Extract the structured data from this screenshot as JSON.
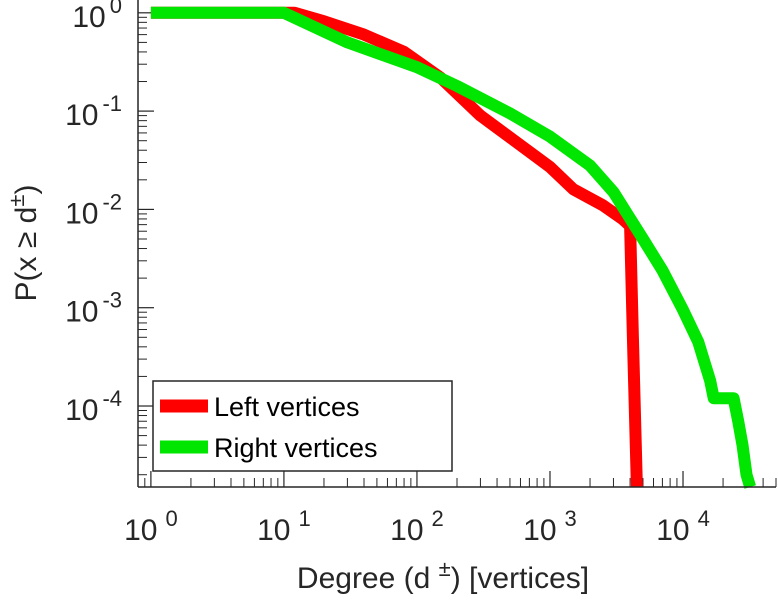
{
  "chart_data": {
    "type": "line",
    "scale": {
      "x": "log",
      "y": "log"
    },
    "xlim": [
      0.8,
      50000
    ],
    "ylim": [
      1.5e-05,
      1.35
    ],
    "xlabel": {
      "prefix": "Degree (d ",
      "sup": "±",
      "suffix": ") [vertices]"
    },
    "ylabel": {
      "prefix": "P(x ≥ d",
      "sup": "±",
      "suffix": ")"
    },
    "x_ticks": [
      {
        "base": "10",
        "exp": "0",
        "value": 1
      },
      {
        "base": "10",
        "exp": "1",
        "value": 10
      },
      {
        "base": "10",
        "exp": "2",
        "value": 100
      },
      {
        "base": "10",
        "exp": "3",
        "value": 1000
      },
      {
        "base": "10",
        "exp": "4",
        "value": 10000
      }
    ],
    "y_ticks": [
      {
        "base": "10",
        "exp": "0",
        "value": 1
      },
      {
        "base": "10",
        "exp": "-1",
        "value": 0.1
      },
      {
        "base": "10",
        "exp": "-2",
        "value": 0.01
      },
      {
        "base": "10",
        "exp": "-3",
        "value": 0.001
      },
      {
        "base": "10",
        "exp": "-4",
        "value": 0.0001
      }
    ],
    "legend": {
      "location": "lower-left"
    },
    "series": [
      {
        "name": "Left vertices",
        "color": "#ff0000",
        "x": [
          1,
          12,
          20,
          40,
          80,
          150,
          300,
          600,
          1000,
          1500,
          2500,
          3500,
          4000,
          4200,
          4500
        ],
        "y": [
          1,
          1,
          0.82,
          0.6,
          0.4,
          0.22,
          0.09,
          0.045,
          0.027,
          0.016,
          0.011,
          0.008,
          0.0068,
          0.0005,
          1.5e-05
        ]
      },
      {
        "name": "Right vertices",
        "color": "#00e600",
        "x": [
          1,
          10,
          30,
          100,
          200,
          500,
          1000,
          2000,
          3000,
          5000,
          7000,
          10000,
          13000,
          16000,
          17000,
          24000,
          26000,
          28000,
          30000,
          32000
        ],
        "y": [
          1,
          1,
          0.5,
          0.28,
          0.18,
          0.095,
          0.055,
          0.028,
          0.015,
          0.005,
          0.0024,
          0.00095,
          0.00045,
          0.00018,
          0.00012,
          0.00012,
          7e-05,
          4e-05,
          2e-05,
          1.5e-05
        ]
      }
    ]
  }
}
